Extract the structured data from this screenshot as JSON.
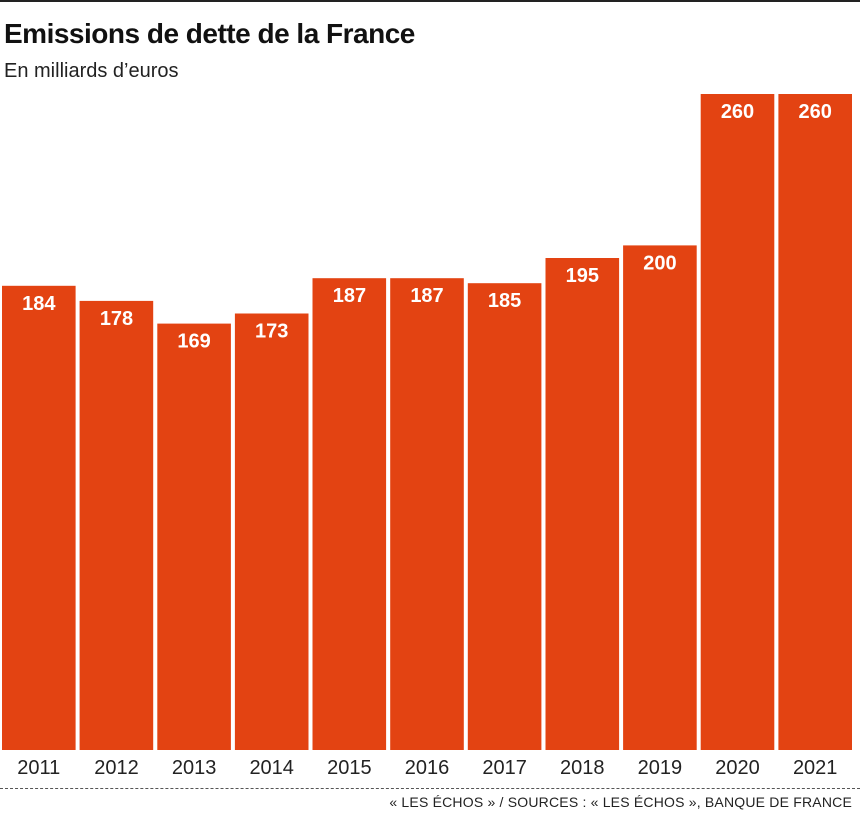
{
  "title": "Emissions de dette de la France",
  "subtitle": "En milliards d’euros",
  "source": "« LES ÉCHOS » / SOURCES : « LES ÉCHOS », BANQUE DE FRANCE",
  "colors": {
    "bar": "#E34312",
    "bar_label": "#ffffff",
    "axis_text": "#222222"
  },
  "chart_data": {
    "type": "bar",
    "title": "Emissions de dette de la France",
    "subtitle": "En milliards d’euros",
    "xlabel": "",
    "ylabel": "",
    "categories": [
      "2011",
      "2012",
      "2013",
      "2014",
      "2015",
      "2016",
      "2017",
      "2018",
      "2019",
      "2020",
      "2021"
    ],
    "values": [
      184,
      178,
      169,
      173,
      187,
      187,
      185,
      195,
      200,
      260,
      260
    ],
    "ylim": [
      0,
      260
    ],
    "grid": false,
    "legend": "none",
    "data_labels": true
  }
}
